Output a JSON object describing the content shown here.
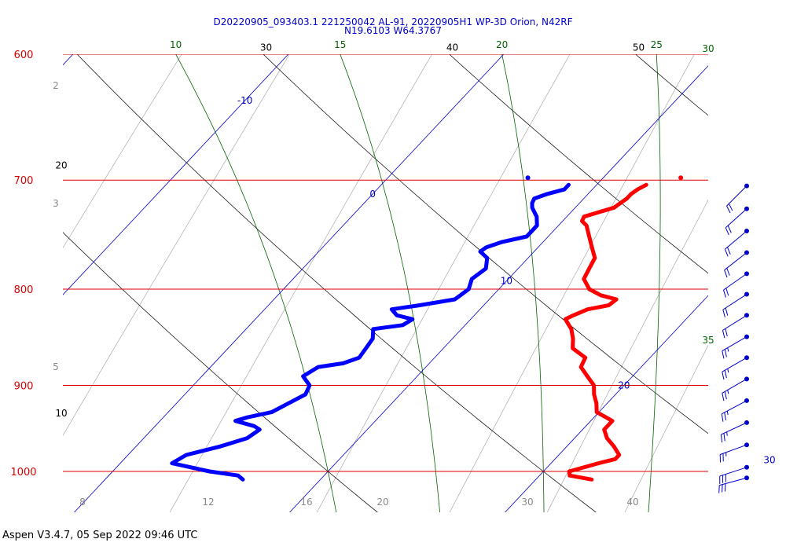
{
  "title_line1": "D20220905_093403.1 221250042 AL-91, 20220905H1 WP-3D Orion, N42RF",
  "title_line2": "N19.6103 W64.3767",
  "footer": "Aspen V3.4.7, 05 Sep 2022  09:46 UTC",
  "colors": {
    "isobar": "#dd0000",
    "isotherm": "#0000cc",
    "dry_adiabat": "#000000",
    "moist_adiabat": "#006600",
    "mixing_ratio": "#888888",
    "temperature": "#ff0000",
    "dewpoint": "#0000ff",
    "pressure_label": "#dd0000",
    "wind_barb": "#0000cc"
  },
  "chart_data": {
    "type": "skew-t",
    "pressure_levels": [
      600,
      700,
      800,
      900,
      1000
    ],
    "ylim": [
      1040,
      600
    ],
    "isotherms": [
      -10,
      0,
      10,
      20,
      30
    ],
    "dry_adiabats": [
      10,
      20,
      30,
      40,
      50
    ],
    "moist_adiabats": [
      10,
      15,
      20,
      25,
      30,
      35
    ],
    "mixing_ratio_labels": [
      2,
      3,
      5,
      8,
      12,
      16,
      20,
      30,
      40
    ],
    "series": [
      {
        "name": "",
        "variable": "temperature",
        "points": [
          {
            "p": 704,
            "t": 12.3
          },
          {
            "p": 708,
            "t": 12.1
          },
          {
            "p": 712,
            "t": 12.0
          },
          {
            "p": 716,
            "t": 12.0
          },
          {
            "p": 720,
            "t": 11.9
          },
          {
            "p": 724,
            "t": 11.8
          },
          {
            "p": 728,
            "t": 11.3
          },
          {
            "p": 732,
            "t": 10.8
          },
          {
            "p": 736,
            "t": 10.9
          },
          {
            "p": 740,
            "t": 11.3
          },
          {
            "p": 750,
            "t": 11.9
          },
          {
            "p": 760,
            "t": 12.5
          },
          {
            "p": 770,
            "t": 13.1
          },
          {
            "p": 780,
            "t": 13.3
          },
          {
            "p": 790,
            "t": 13.5
          },
          {
            "p": 800,
            "t": 14.2
          },
          {
            "p": 806,
            "t": 15.0
          },
          {
            "p": 810,
            "t": 15.9
          },
          {
            "p": 816,
            "t": 15.8
          },
          {
            "p": 820,
            "t": 15.0
          },
          {
            "p": 826,
            "t": 14.6
          },
          {
            "p": 830,
            "t": 14.4
          },
          {
            "p": 840,
            "t": 15.1
          },
          {
            "p": 850,
            "t": 15.6
          },
          {
            "p": 860,
            "t": 16.0
          },
          {
            "p": 870,
            "t": 17.0
          },
          {
            "p": 880,
            "t": 17.2
          },
          {
            "p": 890,
            "t": 17.9
          },
          {
            "p": 900,
            "t": 18.6
          },
          {
            "p": 910,
            "t": 19.0
          },
          {
            "p": 920,
            "t": 19.5
          },
          {
            "p": 930,
            "t": 19.9
          },
          {
            "p": 940,
            "t": 21.0
          },
          {
            "p": 950,
            "t": 21.0
          },
          {
            "p": 960,
            "t": 21.5
          },
          {
            "p": 970,
            "t": 22.2
          },
          {
            "p": 980,
            "t": 22.8
          },
          {
            "p": 985,
            "t": 22.8
          },
          {
            "p": 990,
            "t": 22.2
          },
          {
            "p": 1000,
            "t": 21.2
          },
          {
            "p": 1005,
            "t": 21.4
          },
          {
            "p": 1010,
            "t": 22.6
          }
        ]
      },
      {
        "name": "",
        "variable": "dewpoint",
        "points": [
          {
            "p": 704,
            "t": 8.7
          },
          {
            "p": 708,
            "t": 8.7
          },
          {
            "p": 712,
            "t": 8.1
          },
          {
            "p": 716,
            "t": 7.7
          },
          {
            "p": 720,
            "t": 7.8
          },
          {
            "p": 724,
            "t": 8.0
          },
          {
            "p": 728,
            "t": 8.3
          },
          {
            "p": 732,
            "t": 8.6
          },
          {
            "p": 740,
            "t": 9.0
          },
          {
            "p": 750,
            "t": 9.0
          },
          {
            "p": 755,
            "t": 8.1
          },
          {
            "p": 760,
            "t": 7.6
          },
          {
            "p": 764,
            "t": 7.5
          },
          {
            "p": 770,
            "t": 8.1
          },
          {
            "p": 780,
            "t": 8.5
          },
          {
            "p": 790,
            "t": 8.3
          },
          {
            "p": 800,
            "t": 8.6
          },
          {
            "p": 810,
            "t": 8.4
          },
          {
            "p": 816,
            "t": 7.0
          },
          {
            "p": 820,
            "t": 5.9
          },
          {
            "p": 826,
            "t": 6.4
          },
          {
            "p": 830,
            "t": 7.3
          },
          {
            "p": 836,
            "t": 7.1
          },
          {
            "p": 840,
            "t": 5.9
          },
          {
            "p": 850,
            "t": 6.3
          },
          {
            "p": 860,
            "t": 6.4
          },
          {
            "p": 870,
            "t": 6.5
          },
          {
            "p": 876,
            "t": 6.0
          },
          {
            "p": 880,
            "t": 5.0
          },
          {
            "p": 890,
            "t": 4.7
          },
          {
            "p": 900,
            "t": 5.4
          },
          {
            "p": 910,
            "t": 5.6
          },
          {
            "p": 920,
            "t": 5.2
          },
          {
            "p": 930,
            "t": 4.8
          },
          {
            "p": 936,
            "t": 3.9
          },
          {
            "p": 940,
            "t": 3.5
          },
          {
            "p": 946,
            "t": 4.6
          },
          {
            "p": 950,
            "t": 5.0
          },
          {
            "p": 960,
            "t": 4.8
          },
          {
            "p": 970,
            "t": 3.9
          },
          {
            "p": 980,
            "t": 2.7
          },
          {
            "p": 990,
            "t": 2.4
          },
          {
            "p": 1000,
            "t": 4.5
          },
          {
            "p": 1005,
            "t": 6.0
          },
          {
            "p": 1010,
            "t": 6.4
          }
        ]
      }
    ],
    "top_markers": [
      {
        "variable": "dewpoint",
        "p": 698,
        "t": 6.5
      },
      {
        "variable": "temperature",
        "p": 698,
        "t": 13.6
      }
    ],
    "winds": [
      {
        "p": 705,
        "dir": 225,
        "kt": 20
      },
      {
        "p": 725,
        "dir": 228,
        "kt": 20
      },
      {
        "p": 745,
        "dir": 230,
        "kt": 20
      },
      {
        "p": 765,
        "dir": 232,
        "kt": 20
      },
      {
        "p": 785,
        "dir": 235,
        "kt": 20
      },
      {
        "p": 805,
        "dir": 237,
        "kt": 20
      },
      {
        "p": 826,
        "dir": 238,
        "kt": 20
      },
      {
        "p": 848,
        "dir": 240,
        "kt": 25
      },
      {
        "p": 870,
        "dir": 240,
        "kt": 25
      },
      {
        "p": 893,
        "dir": 240,
        "kt": 25
      },
      {
        "p": 917,
        "dir": 242,
        "kt": 25
      },
      {
        "p": 942,
        "dir": 245,
        "kt": 25
      },
      {
        "p": 968,
        "dir": 250,
        "kt": 25
      },
      {
        "p": 995,
        "dir": 252,
        "kt": 30
      },
      {
        "p": 1008,
        "dir": 255,
        "kt": 30
      }
    ]
  }
}
